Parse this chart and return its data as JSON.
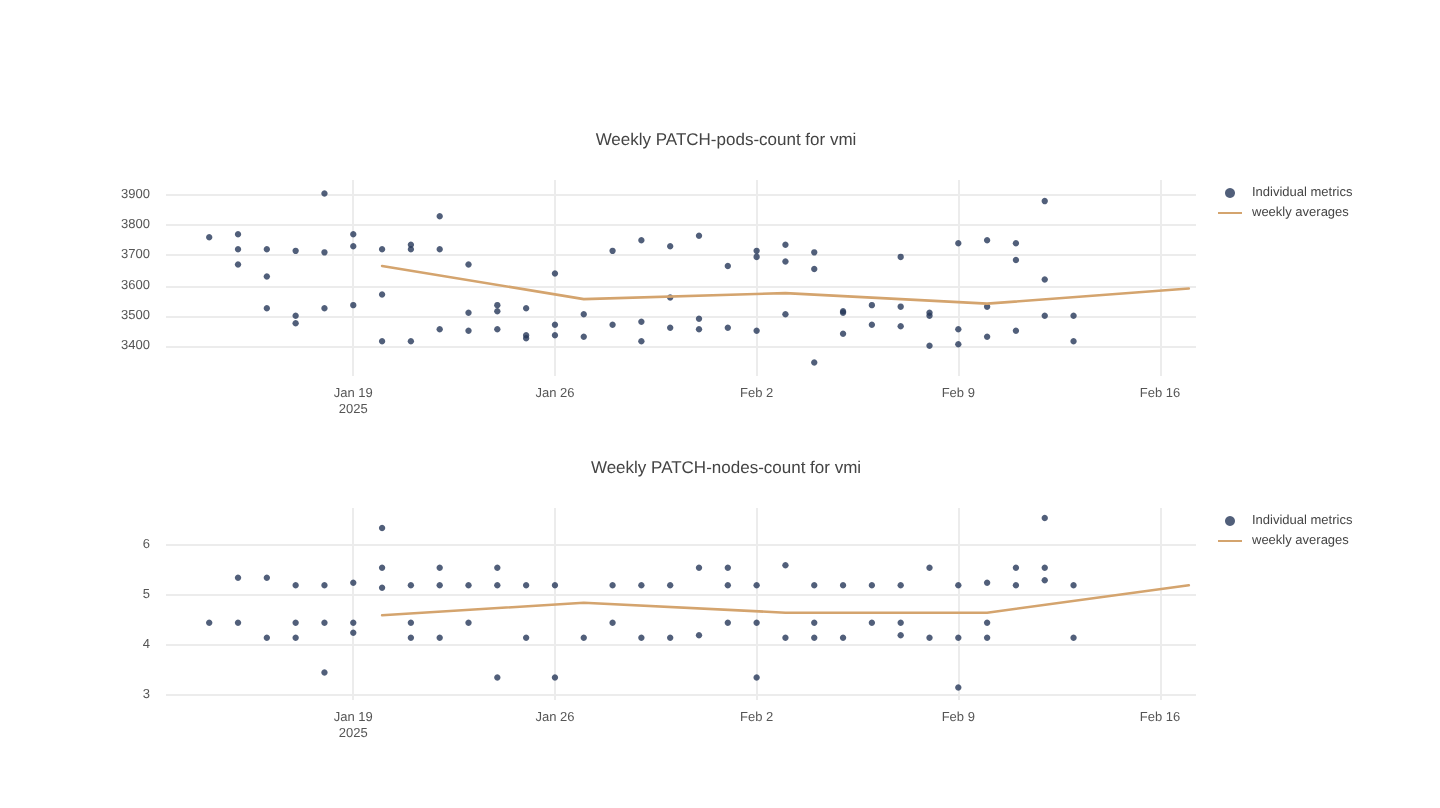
{
  "chart_data": [
    {
      "type": "scatter",
      "title": "Weekly PATCH-pods-count for vmi",
      "grid": true,
      "legend": "top right",
      "xlim": [
        "2025-01-12T12:00",
        "2025-02-17T06:00"
      ],
      "xticks": [
        {
          "value": "2025-01-19",
          "label": "Jan 19\n2025"
        },
        {
          "value": "2025-01-26",
          "label": "Jan 26"
        },
        {
          "value": "2025-02-02",
          "label": "Feb 2"
        },
        {
          "value": "2025-02-09",
          "label": "Feb 9"
        },
        {
          "value": "2025-02-16",
          "label": "Feb 16"
        }
      ],
      "ylim": [
        3300,
        3950
      ],
      "yticks": [
        3400,
        3500,
        3600,
        3700,
        3800,
        3900
      ],
      "series": [
        {
          "name": "Individual metrics",
          "type": "scatter",
          "marker": "circle",
          "color": "#253759",
          "x": [
            "2025-01-14",
            "2025-01-15",
            "2025-01-15",
            "2025-01-15",
            "2025-01-16",
            "2025-01-16",
            "2025-01-16",
            "2025-01-17",
            "2025-01-17",
            "2025-01-17",
            "2025-01-18",
            "2025-01-18",
            "2025-01-18",
            "2025-01-19",
            "2025-01-19",
            "2025-01-19",
            "2025-01-20",
            "2025-01-20",
            "2025-01-20",
            "2025-01-21",
            "2025-01-21",
            "2025-01-21",
            "2025-01-22",
            "2025-01-22",
            "2025-01-22",
            "2025-01-23",
            "2025-01-23",
            "2025-01-23",
            "2025-01-24",
            "2025-01-24",
            "2025-01-24",
            "2025-01-25",
            "2025-01-25",
            "2025-01-25",
            "2025-01-26",
            "2025-01-26",
            "2025-01-26",
            "2025-01-27",
            "2025-01-27",
            "2025-01-28",
            "2025-01-28",
            "2025-01-29",
            "2025-01-29",
            "2025-01-29",
            "2025-01-30",
            "2025-01-30",
            "2025-01-30",
            "2025-01-31",
            "2025-01-31",
            "2025-01-31",
            "2025-02-01",
            "2025-02-01",
            "2025-02-02",
            "2025-02-02",
            "2025-02-02",
            "2025-02-03",
            "2025-02-03",
            "2025-02-03",
            "2025-02-04",
            "2025-02-04",
            "2025-02-04",
            "2025-02-05",
            "2025-02-05",
            "2025-02-05",
            "2025-02-06",
            "2025-02-06",
            "2025-02-07",
            "2025-02-07",
            "2025-02-07",
            "2025-02-08",
            "2025-02-08",
            "2025-02-08",
            "2025-02-09",
            "2025-02-09",
            "2025-02-09",
            "2025-02-10",
            "2025-02-10",
            "2025-02-10",
            "2025-02-11",
            "2025-02-11",
            "2025-02-11",
            "2025-02-12",
            "2025-02-12",
            "2025-02-12",
            "2025-02-13",
            "2025-02-13"
          ],
          "values": [
            3760,
            3770,
            3720,
            3670,
            3720,
            3630,
            3525,
            3715,
            3500,
            3475,
            3905,
            3710,
            3525,
            3770,
            3730,
            3535,
            3720,
            3570,
            3415,
            3735,
            3720,
            3415,
            3830,
            3720,
            3455,
            3670,
            3510,
            3450,
            3535,
            3515,
            3455,
            3525,
            3435,
            3425,
            3640,
            3470,
            3435,
            3505,
            3430,
            3715,
            3470,
            3750,
            3480,
            3415,
            3730,
            3560,
            3460,
            3765,
            3490,
            3455,
            3665,
            3460,
            3715,
            3695,
            3450,
            3735,
            3680,
            3505,
            3710,
            3655,
            3345,
            3515,
            3510,
            3440,
            3535,
            3470,
            3695,
            3530,
            3465,
            3510,
            3500,
            3400,
            3740,
            3455,
            3405,
            3750,
            3530,
            3430,
            3740,
            3685,
            3450,
            3880,
            3620,
            3500,
            3500,
            3415
          ]
        },
        {
          "name": "weekly averages",
          "type": "line",
          "marker": "none",
          "line_style": "solid",
          "color": "#d4a46e",
          "x": [
            "2025-01-20",
            "2025-01-27",
            "2025-02-03",
            "2025-02-10",
            "2025-02-17"
          ],
          "values": [
            3665,
            3555,
            3575,
            3540,
            3590
          ]
        }
      ]
    },
    {
      "type": "scatter",
      "title": "Weekly PATCH-nodes-count for vmi",
      "grid": true,
      "legend": "top right",
      "xlim": [
        "2025-01-12T12:00",
        "2025-02-17T06:00"
      ],
      "xticks": [
        {
          "value": "2025-01-19",
          "label": "Jan 19\n2025"
        },
        {
          "value": "2025-01-26",
          "label": "Jan 26"
        },
        {
          "value": "2025-02-02",
          "label": "Feb 2"
        },
        {
          "value": "2025-02-09",
          "label": "Feb 9"
        },
        {
          "value": "2025-02-16",
          "label": "Feb 16"
        }
      ],
      "ylim": [
        2.9,
        6.75
      ],
      "yticks": [
        3,
        4,
        5,
        6
      ],
      "series": [
        {
          "name": "Individual metrics",
          "type": "scatter",
          "marker": "circle",
          "color": "#253759",
          "x": [
            "2025-01-14",
            "2025-01-15",
            "2025-01-15",
            "2025-01-16",
            "2025-01-16",
            "2025-01-17",
            "2025-01-17",
            "2025-01-17",
            "2025-01-18",
            "2025-01-18",
            "2025-01-18",
            "2025-01-19",
            "2025-01-19",
            "2025-01-19",
            "2025-01-20",
            "2025-01-20",
            "2025-01-20",
            "2025-01-21",
            "2025-01-21",
            "2025-01-21",
            "2025-01-22",
            "2025-01-22",
            "2025-01-22",
            "2025-01-23",
            "2025-01-23",
            "2025-01-24",
            "2025-01-24",
            "2025-01-24",
            "2025-01-25",
            "2025-01-25",
            "2025-01-26",
            "2025-01-26",
            "2025-01-27",
            "2025-01-28",
            "2025-01-28",
            "2025-01-29",
            "2025-01-29",
            "2025-01-30",
            "2025-01-30",
            "2025-01-31",
            "2025-01-31",
            "2025-02-01",
            "2025-02-01",
            "2025-02-01",
            "2025-02-02",
            "2025-02-02",
            "2025-02-02",
            "2025-02-03",
            "2025-02-03",
            "2025-02-04",
            "2025-02-04",
            "2025-02-04",
            "2025-02-05",
            "2025-02-05",
            "2025-02-06",
            "2025-02-06",
            "2025-02-07",
            "2025-02-07",
            "2025-02-07",
            "2025-02-08",
            "2025-02-08",
            "2025-02-09",
            "2025-02-09",
            "2025-02-09",
            "2025-02-10",
            "2025-02-10",
            "2025-02-10",
            "2025-02-11",
            "2025-02-11",
            "2025-02-12",
            "2025-02-12",
            "2025-02-12",
            "2025-02-13",
            "2025-02-13"
          ],
          "values": [
            4.45,
            5.35,
            4.45,
            5.35,
            4.15,
            5.2,
            4.45,
            4.15,
            5.2,
            4.45,
            3.45,
            5.25,
            4.45,
            4.25,
            6.35,
            5.55,
            5.15,
            5.2,
            4.45,
            4.15,
            5.55,
            5.2,
            4.15,
            5.2,
            4.45,
            5.55,
            5.2,
            3.35,
            5.2,
            4.15,
            5.2,
            3.35,
            4.15,
            5.2,
            4.45,
            5.2,
            4.15,
            5.2,
            4.15,
            5.55,
            4.2,
            5.55,
            5.2,
            4.45,
            5.2,
            4.45,
            3.35,
            5.6,
            4.15,
            5.2,
            4.45,
            4.15,
            5.2,
            4.15,
            5.2,
            4.45,
            5.2,
            4.45,
            4.2,
            5.55,
            4.15,
            5.2,
            4.15,
            3.15,
            5.25,
            4.45,
            4.15,
            5.55,
            5.2,
            6.55,
            5.55,
            5.3,
            5.2,
            4.15
          ]
        },
        {
          "name": "weekly averages",
          "type": "line",
          "marker": "none",
          "line_style": "solid",
          "color": "#d4a46e",
          "x": [
            "2025-01-20",
            "2025-01-27",
            "2025-02-03",
            "2025-02-10",
            "2025-02-17"
          ],
          "values": [
            4.6,
            4.85,
            4.65,
            4.65,
            5.2
          ]
        }
      ]
    }
  ]
}
